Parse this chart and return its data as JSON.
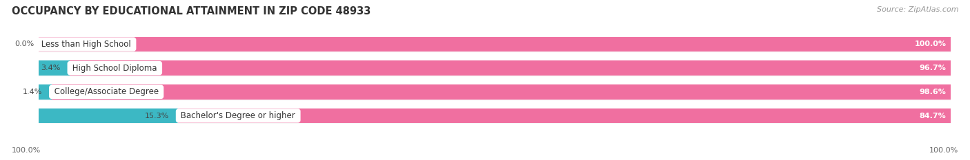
{
  "title": "OCCUPANCY BY EDUCATIONAL ATTAINMENT IN ZIP CODE 48933",
  "source": "Source: ZipAtlas.com",
  "categories": [
    "Less than High School",
    "High School Diploma",
    "College/Associate Degree",
    "Bachelor's Degree or higher"
  ],
  "owner_pct": [
    0.0,
    3.4,
    1.4,
    15.3
  ],
  "renter_pct": [
    100.0,
    96.7,
    98.6,
    84.7
  ],
  "owner_color": "#3cb8c4",
  "renter_color": "#f06fa0",
  "owner_color_light": "#c5e8ec",
  "renter_color_light": "#f9ccd9",
  "bg_color": "#ffffff",
  "row_bg_color": "#f5f5f5",
  "title_fontsize": 10.5,
  "source_fontsize": 8,
  "label_fontsize": 8.5,
  "value_fontsize": 8,
  "legend_fontsize": 8.5,
  "axis_label_fontsize": 8,
  "left_axis_label": "100.0%",
  "right_axis_label": "100.0%"
}
